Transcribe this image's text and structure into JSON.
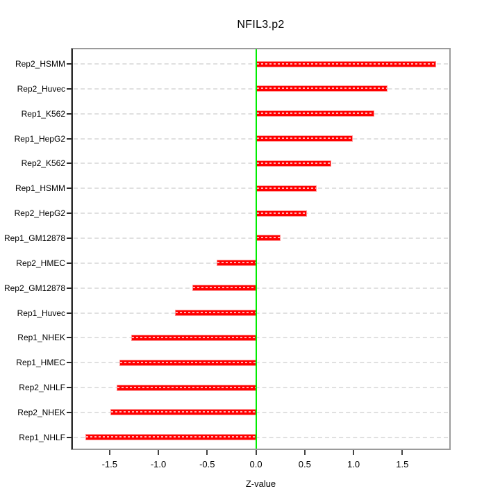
{
  "chart_data": {
    "type": "bar",
    "orientation": "horizontal",
    "title": "NFIL3.p2",
    "xlabel": "Z-value",
    "categories": [
      "Rep2_HSMM",
      "Rep2_Huvec",
      "Rep1_K562",
      "Rep1_HepG2",
      "Rep2_K562",
      "Rep1_HSMM",
      "Rep2_HepG2",
      "Rep1_GM12878",
      "Rep2_HMEC",
      "Rep2_GM12878",
      "Rep1_Huvec",
      "Rep1_NHEK",
      "Rep1_HMEC",
      "Rep2_NHLF",
      "Rep2_NHEK",
      "Rep1_NHLF"
    ],
    "values": [
      1.85,
      1.35,
      1.21,
      0.99,
      0.77,
      0.62,
      0.52,
      0.25,
      -0.4,
      -0.65,
      -0.83,
      -1.28,
      -1.4,
      -1.43,
      -1.49,
      -1.75
    ],
    "xticks": [
      -1.5,
      -1.0,
      -0.5,
      0.0,
      0.5,
      1.0,
      1.5
    ],
    "xtick_labels": [
      "-1.5",
      "-1.0",
      "-0.5",
      "0.0",
      "0.5",
      "1.0",
      "1.5"
    ],
    "xlim": [
      -1.883,
      1.982
    ],
    "grid": "horizontal dashed line per category",
    "zero_line_at": 0,
    "legend": "none",
    "colors": {
      "bar_fill": "#ff0000",
      "bar_edge": "#ff9191",
      "zero_line": "#00ee00",
      "grid": "#e0e0e0",
      "frame": "#9b9b9b",
      "axis": "#2b2b2b",
      "text": "#000000",
      "background": "#ffffff"
    }
  }
}
